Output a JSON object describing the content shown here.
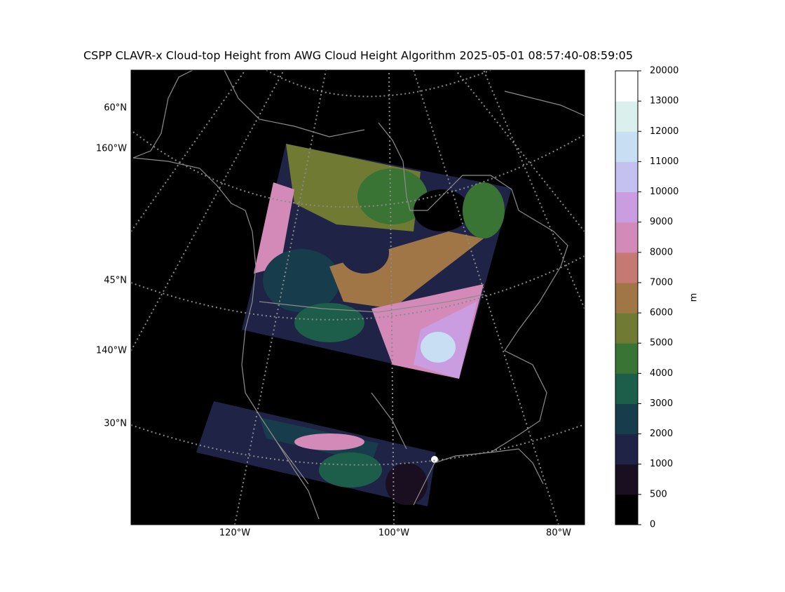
{
  "title": "CSPP CLAVR-x Cloud-top Height from AWG Cloud Height Algorithm 2025-05-01 08:57:40-08:59:05",
  "map": {
    "lat_labels": [
      "60°N",
      "160°W",
      "45°N",
      "140°W",
      "30°N"
    ],
    "lon_labels": [
      "120°W",
      "100°W",
      "80°W"
    ]
  },
  "colorbar": {
    "label": "m",
    "boundaries": [
      0,
      500,
      1000,
      2000,
      3000,
      4000,
      5000,
      6000,
      7000,
      8000,
      9000,
      10000,
      11000,
      12000,
      13000,
      20000
    ],
    "colors": [
      "#000000",
      "#1a0f20",
      "#1f2346",
      "#173d4c",
      "#1c5e4a",
      "#3a7435",
      "#707a33",
      "#a07646",
      "#c47a72",
      "#d38ab8",
      "#c99de0",
      "#c4c0f0",
      "#c8def3",
      "#daf0ec",
      "#ffffff"
    ]
  }
}
